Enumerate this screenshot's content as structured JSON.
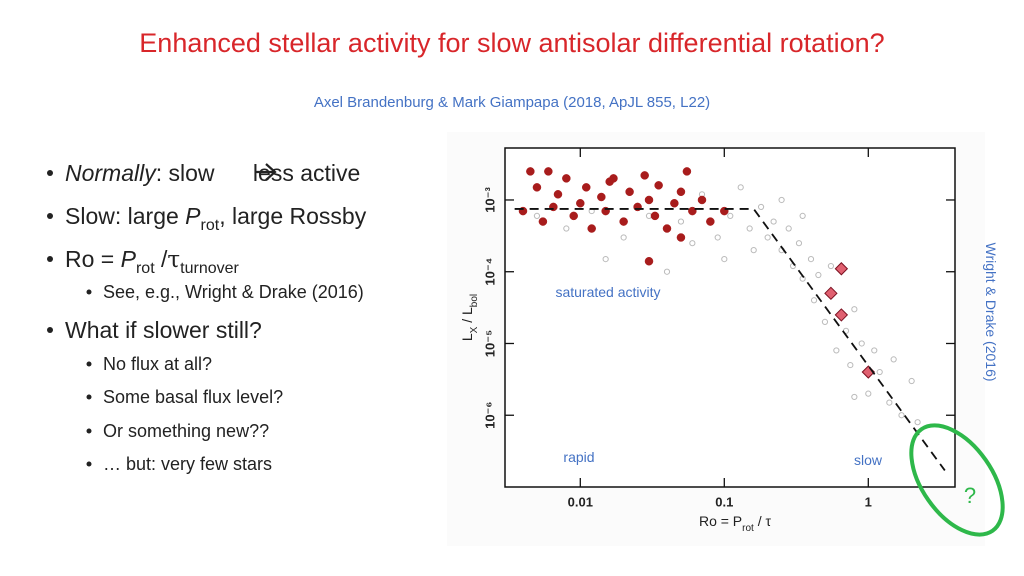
{
  "header": {
    "title": "Enhanced stellar activity for slow antisolar differential rotation?",
    "subtitle": "Axel Brandenburg & Mark Giampapa (2018, ApJL 855, L22)"
  },
  "bullets": [
    {
      "italic": "Normally",
      "text": ": slow ",
      "after": "less active"
    },
    {
      "text": "Slow: large ",
      "symbol": "P",
      "subscript": "rot",
      "after": ", large Rossby"
    },
    {
      "text": "Ro = ",
      "symbol": "P",
      "subscript": "rot",
      "slash": " /",
      "tau": "τ",
      "tau_subscript": "turnover"
    },
    {
      "sub": "See, e.g., Wright & Drake (2016)"
    },
    {
      "text": "What if slower still?"
    },
    {
      "sub": "No flux at all?"
    },
    {
      "sub": "Some basal flux level?"
    },
    {
      "sub": "Or something new??"
    },
    {
      "sub": "… but: very few stars"
    }
  ],
  "chart_data": {
    "type": "scatter",
    "x_label": {
      "text": "Ro = P",
      "subscript": "rot",
      "after": " / τ"
    },
    "y_label": {
      "text": "L",
      "subscript": "X",
      "middle": " / L",
      "subscript2": "bol"
    },
    "xlim": [
      0.003,
      4
    ],
    "ylim": [
      1e-07,
      0.0053
    ],
    "log_x": true,
    "log_y": true,
    "xticks": [
      0.01,
      0.1,
      1
    ],
    "yticks": [
      {
        "value": 0.001,
        "label": "10⁻³"
      },
      {
        "value": 0.0001,
        "label": "10⁻⁴"
      },
      {
        "value": 1e-05,
        "label": "10⁻⁵"
      },
      {
        "value": 1e-06,
        "label": "10⁻⁶"
      }
    ],
    "annotations": [
      "saturated activity",
      "rapid",
      "slow"
    ],
    "side_note": "Wright & Drake (2016)",
    "question": "?",
    "series": [
      {
        "kind": "points",
        "color": "#bbbbbb",
        "x": [
          0.005,
          0.008,
          0.012,
          0.02,
          0.03,
          0.05,
          0.07,
          0.09,
          0.11,
          0.13,
          0.15,
          0.18,
          0.2,
          0.22,
          0.25,
          0.28,
          0.3,
          0.33,
          0.35,
          0.4,
          0.42,
          0.45,
          0.5,
          0.55,
          0.6,
          0.7,
          0.75,
          0.8,
          0.9,
          1.0,
          1.1,
          1.2,
          1.4,
          1.5,
          1.7,
          2.0,
          2.2,
          0.06,
          0.04,
          0.015,
          0.1,
          0.35,
          0.25,
          0.16,
          0.8
        ],
        "y": [
          0.0006,
          0.0004,
          0.0007,
          0.0003,
          0.0006,
          0.0005,
          0.0012,
          0.0003,
          0.0006,
          0.0015,
          0.0004,
          0.0008,
          0.0003,
          0.0005,
          0.0002,
          0.0004,
          0.00012,
          0.00025,
          8e-05,
          0.00015,
          4e-05,
          9e-05,
          2e-05,
          0.00012,
          8e-06,
          1.5e-05,
          5e-06,
          3e-05,
          1e-05,
          2e-06,
          8e-06,
          4e-06,
          1.5e-06,
          6e-06,
          1e-06,
          3e-06,
          8e-07,
          0.00025,
          0.0001,
          0.00015,
          0.00015,
          0.0006,
          0.001,
          0.0002,
          1.8e-06
        ]
      },
      {
        "kind": "points",
        "color": "#a81c1c",
        "x": [
          0.0045,
          0.005,
          0.006,
          0.0065,
          0.007,
          0.008,
          0.009,
          0.01,
          0.011,
          0.012,
          0.014,
          0.015,
          0.017,
          0.02,
          0.022,
          0.025,
          0.028,
          0.03,
          0.033,
          0.035,
          0.04,
          0.045,
          0.05,
          0.055,
          0.06,
          0.07,
          0.08,
          0.1,
          0.004,
          0.0055,
          0.016,
          0.03,
          0.05
        ],
        "y": [
          0.0025,
          0.0015,
          0.0025,
          0.0008,
          0.0012,
          0.002,
          0.0006,
          0.0009,
          0.0015,
          0.0004,
          0.0011,
          0.0007,
          0.002,
          0.0005,
          0.0013,
          0.0008,
          0.0022,
          0.001,
          0.0006,
          0.0016,
          0.0004,
          0.0009,
          0.0013,
          0.0025,
          0.0007,
          0.001,
          0.0005,
          0.0007,
          0.0007,
          0.0005,
          0.0018,
          0.00014,
          0.0003
        ]
      },
      {
        "kind": "diamonds",
        "color": "#e06070",
        "x": [
          0.65,
          0.55,
          0.65,
          1.0
        ],
        "y": [
          0.00011,
          5e-05,
          2.5e-05,
          4e-06
        ]
      },
      {
        "kind": "dashed",
        "color": "#111111",
        "x": [
          0.0035,
          0.16,
          3.4
        ],
        "y": [
          0.00075,
          0.00075,
          1.7e-07
        ]
      }
    ]
  }
}
